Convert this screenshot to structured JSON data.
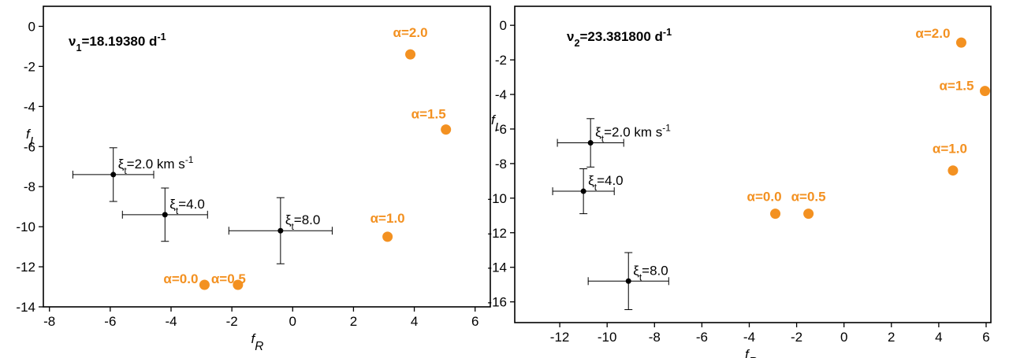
{
  "chart_data": [
    {
      "type": "scatter",
      "title": [
        {
          "text": "ν"
        },
        {
          "text": "1",
          "shift": "sub"
        },
        {
          "text": "=18.19380 d"
        },
        {
          "text": "-1",
          "shift": "sup"
        }
      ],
      "xlabel": [
        {
          "text": "f"
        },
        {
          "text": "R",
          "shift": "sub"
        }
      ],
      "ylabel": [
        {
          "text": "f"
        },
        {
          "text": "I",
          "shift": "sub"
        }
      ],
      "xlim": [
        -8.2,
        6.5
      ],
      "xticks": [
        -8,
        -6,
        -4,
        -2,
        0,
        2,
        4,
        6
      ],
      "ylim": [
        -14,
        1
      ],
      "yticks": [
        0,
        -2,
        -4,
        -6,
        -8,
        -10,
        -12,
        -14
      ],
      "series": [
        {
          "color": "#f39121",
          "x": [
            3.87,
            5.04,
            3.12,
            -2.9,
            -1.8
          ],
          "values": [
            -1.4,
            -5.15,
            -10.5,
            -12.9,
            -12.9
          ],
          "labels": [
            [
              {
                "text": "α=2.0"
              }
            ],
            [
              {
                "text": "α=1.5"
              }
            ],
            [
              {
                "text": "α=1.0"
              }
            ],
            [
              {
                "text": "α=0.0"
              }
            ],
            [
              {
                "text": "α=0.5"
              }
            ]
          ]
        },
        {
          "color": "#000000",
          "x": [
            -5.9,
            -4.2,
            -0.4
          ],
          "values": [
            -7.4,
            -9.4,
            -10.2
          ],
          "xerr": [
            1.33,
            1.4,
            1.7
          ],
          "yerr": [
            1.34,
            1.33,
            1.65
          ],
          "labels": [
            [
              {
                "text": "ξ"
              },
              {
                "text": "t",
                "shift": "sub"
              },
              {
                "text": "=2.0 km s"
              },
              {
                "text": "-1",
                "shift": "sup"
              }
            ],
            [
              {
                "text": "ξ"
              },
              {
                "text": "t",
                "shift": "sub"
              },
              {
                "text": "=4.0"
              }
            ],
            [
              {
                "text": "ξ"
              },
              {
                "text": "t",
                "shift": "sub"
              },
              {
                "text": "=8.0"
              }
            ]
          ]
        }
      ]
    },
    {
      "type": "scatter",
      "title": [
        {
          "text": "ν"
        },
        {
          "text": "2",
          "shift": "sub"
        },
        {
          "text": "=23.381800 d"
        },
        {
          "text": "-1",
          "shift": "sup"
        }
      ],
      "xlabel": [
        {
          "text": "f"
        },
        {
          "text": "R",
          "shift": "sub"
        }
      ],
      "ylabel": [
        {
          "text": "f"
        },
        {
          "text": "I",
          "shift": "sub"
        }
      ],
      "xlim": [
        -13.9,
        6.2
      ],
      "xticks": [
        -12,
        -10,
        -8,
        -6,
        -4,
        -2,
        0,
        2,
        4,
        6
      ],
      "ylim": [
        -17.2,
        1.1
      ],
      "yticks": [
        0,
        -2,
        -4,
        -6,
        -8,
        -10,
        -12,
        -14,
        -16
      ],
      "series": [
        {
          "color": "#f39121",
          "x": [
            4.95,
            5.95,
            4.6,
            -2.9,
            -1.5
          ],
          "values": [
            -1.0,
            -3.8,
            -8.4,
            -10.9,
            -10.9
          ],
          "labels": [
            [
              {
                "text": "α=2.0"
              }
            ],
            [
              {
                "text": "α=1.5"
              }
            ],
            [
              {
                "text": "α=1.0"
              }
            ],
            [
              {
                "text": "α=0.0"
              }
            ],
            [
              {
                "text": "α=0.5"
              }
            ]
          ]
        },
        {
          "color": "#000000",
          "x": [
            -10.7,
            -11.0,
            -9.1
          ],
          "values": [
            -6.8,
            -9.6,
            -14.8
          ],
          "xerr": [
            1.4,
            1.3,
            1.7
          ],
          "yerr": [
            1.4,
            1.3,
            1.65
          ],
          "labels": [
            [
              {
                "text": "ξ"
              },
              {
                "text": "t",
                "shift": "sub"
              },
              {
                "text": "=2.0 km s"
              },
              {
                "text": "-1",
                "shift": "sup"
              }
            ],
            [
              {
                "text": "ξ"
              },
              {
                "text": "t",
                "shift": "sub"
              },
              {
                "text": "=4.0"
              }
            ],
            [
              {
                "text": "ξ"
              },
              {
                "text": "t",
                "shift": "sub"
              },
              {
                "text": "=8.0"
              }
            ]
          ]
        }
      ]
    }
  ]
}
